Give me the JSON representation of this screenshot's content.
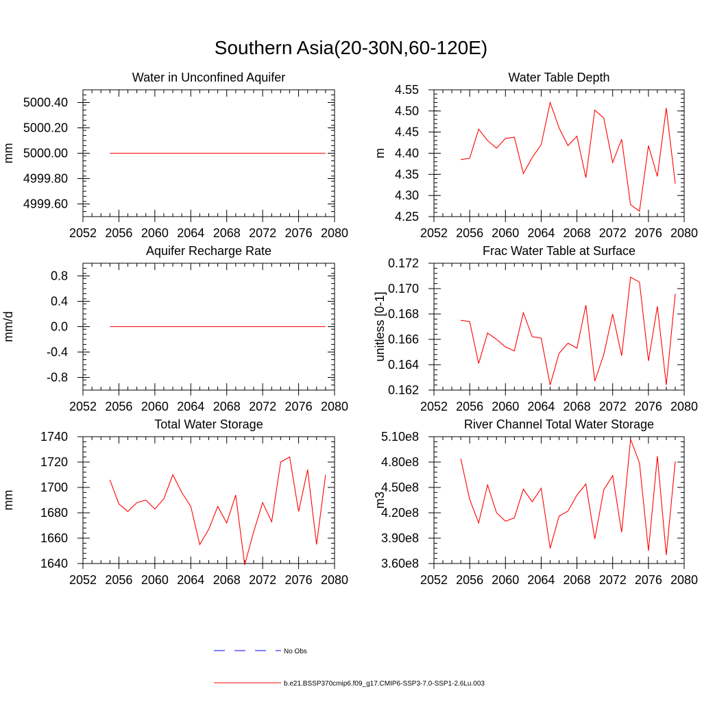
{
  "figure_title": "Southern Asia(20-30N,60-120E)",
  "colors": {
    "model": "#ff0000",
    "obs": "#0000ff",
    "axis": "#000000"
  },
  "legend": {
    "obs_label": "No Obs",
    "model_label": "b.e21.BSSP370cmip6.f09_g17.CMIP6-SSP3-7.0-SSP1-2.6Lu.003"
  },
  "chart_data": [
    {
      "type": "line",
      "title": "Water in Unconfined Aquifer",
      "ylabel": "mm",
      "xlim": [
        2052,
        2080
      ],
      "ylim": [
        4999.5,
        5000.5
      ],
      "xticks": [
        2052,
        2056,
        2060,
        2064,
        2068,
        2072,
        2076,
        2080
      ],
      "xtick_labels": [
        "2052",
        "2056",
        "2060",
        "2064",
        "2068",
        "2072",
        "2076",
        "2080"
      ],
      "yticks": [
        4999.6,
        4999.8,
        5000.0,
        5000.2,
        5000.4
      ],
      "ytick_labels": [
        "4999.60",
        "4999.80",
        "5000.00",
        "5000.20",
        "5000.40"
      ],
      "x": [
        2055,
        2056,
        2057,
        2058,
        2059,
        2060,
        2061,
        2062,
        2063,
        2064,
        2065,
        2066,
        2067,
        2068,
        2069,
        2070,
        2071,
        2072,
        2073,
        2074,
        2075,
        2076,
        2077,
        2078,
        2079
      ],
      "series": [
        {
          "values": [
            5000,
            5000,
            5000,
            5000,
            5000,
            5000,
            5000,
            5000,
            5000,
            5000,
            5000,
            5000,
            5000,
            5000,
            5000,
            5000,
            5000,
            5000,
            5000,
            5000,
            5000,
            5000,
            5000,
            5000,
            5000
          ]
        }
      ]
    },
    {
      "type": "line",
      "title": "Water Table Depth",
      "ylabel": "m",
      "xlim": [
        2052,
        2080
      ],
      "ylim": [
        4.25,
        4.55
      ],
      "xticks": [
        2052,
        2056,
        2060,
        2064,
        2068,
        2072,
        2076,
        2080
      ],
      "xtick_labels": [
        "2052",
        "2056",
        "2060",
        "2064",
        "2068",
        "2072",
        "2076",
        "2080"
      ],
      "yticks": [
        4.25,
        4.3,
        4.35,
        4.4,
        4.45,
        4.5,
        4.55
      ],
      "ytick_labels": [
        "4.25",
        "4.30",
        "4.35",
        "4.40",
        "4.45",
        "4.50",
        "4.55"
      ],
      "x": [
        2055,
        2056,
        2057,
        2058,
        2059,
        2060,
        2061,
        2062,
        2063,
        2064,
        2065,
        2066,
        2067,
        2068,
        2069,
        2070,
        2071,
        2072,
        2073,
        2074,
        2075,
        2076,
        2077,
        2078,
        2079
      ],
      "series": [
        {
          "values": [
            4.385,
            4.388,
            4.457,
            4.43,
            4.412,
            4.435,
            4.438,
            4.352,
            4.39,
            4.42,
            4.52,
            4.46,
            4.418,
            4.44,
            4.342,
            4.502,
            4.483,
            4.378,
            4.433,
            4.278,
            4.263,
            4.418,
            4.345,
            4.507,
            4.328
          ]
        }
      ]
    },
    {
      "type": "line",
      "title": "Aquifer Recharge Rate",
      "ylabel": "mm/d",
      "xlim": [
        2052,
        2080
      ],
      "ylim": [
        -1.0,
        1.0
      ],
      "xticks": [
        2052,
        2056,
        2060,
        2064,
        2068,
        2072,
        2076,
        2080
      ],
      "xtick_labels": [
        "2052",
        "2056",
        "2060",
        "2064",
        "2068",
        "2072",
        "2076",
        "2080"
      ],
      "yticks": [
        -0.8,
        -0.4,
        0.0,
        0.4,
        0.8
      ],
      "ytick_labels": [
        "-0.8",
        "-0.4",
        "0.0",
        "0.4",
        "0.8"
      ],
      "x": [
        2055,
        2056,
        2057,
        2058,
        2059,
        2060,
        2061,
        2062,
        2063,
        2064,
        2065,
        2066,
        2067,
        2068,
        2069,
        2070,
        2071,
        2072,
        2073,
        2074,
        2075,
        2076,
        2077,
        2078,
        2079
      ],
      "series": [
        {
          "values": [
            0,
            0,
            0,
            0,
            0,
            0,
            0,
            0,
            0,
            0,
            0,
            0,
            0,
            0,
            0,
            0,
            0,
            0,
            0,
            0,
            0,
            0,
            0,
            0,
            0
          ]
        }
      ]
    },
    {
      "type": "line",
      "title": "Frac Water Table at Surface",
      "ylabel": "unitless [0-1]",
      "xlim": [
        2052,
        2080
      ],
      "ylim": [
        0.162,
        0.172
      ],
      "xticks": [
        2052,
        2056,
        2060,
        2064,
        2068,
        2072,
        2076,
        2080
      ],
      "xtick_labels": [
        "2052",
        "2056",
        "2060",
        "2064",
        "2068",
        "2072",
        "2076",
        "2080"
      ],
      "yticks": [
        0.162,
        0.164,
        0.166,
        0.168,
        0.17,
        0.172
      ],
      "ytick_labels": [
        "0.162",
        "0.164",
        "0.166",
        "0.168",
        "0.170",
        "0.172"
      ],
      "x": [
        2055,
        2056,
        2057,
        2058,
        2059,
        2060,
        2061,
        2062,
        2063,
        2064,
        2065,
        2066,
        2067,
        2068,
        2069,
        2070,
        2071,
        2072,
        2073,
        2074,
        2075,
        2076,
        2077,
        2078,
        2079
      ],
      "series": [
        {
          "values": [
            0.1675,
            0.1674,
            0.1641,
            0.1665,
            0.166,
            0.1654,
            0.1651,
            0.1681,
            0.1662,
            0.1661,
            0.1624,
            0.1649,
            0.1657,
            0.1653,
            0.1687,
            0.1627,
            0.1648,
            0.168,
            0.1647,
            0.1709,
            0.1705,
            0.1643,
            0.1686,
            0.1624,
            0.1696
          ]
        }
      ]
    },
    {
      "type": "line",
      "title": "Total Water Storage",
      "ylabel": "mm",
      "xlim": [
        2052,
        2080
      ],
      "ylim": [
        1640,
        1740
      ],
      "xticks": [
        2052,
        2056,
        2060,
        2064,
        2068,
        2072,
        2076,
        2080
      ],
      "xtick_labels": [
        "2052",
        "2056",
        "2060",
        "2064",
        "2068",
        "2072",
        "2076",
        "2080"
      ],
      "yticks": [
        1640,
        1660,
        1680,
        1700,
        1720,
        1740
      ],
      "ytick_labels": [
        "1640",
        "1660",
        "1680",
        "1700",
        "1720",
        "1740"
      ],
      "x": [
        2055,
        2056,
        2057,
        2058,
        2059,
        2060,
        2061,
        2062,
        2063,
        2064,
        2065,
        2066,
        2067,
        2068,
        2069,
        2070,
        2071,
        2072,
        2073,
        2074,
        2075,
        2076,
        2077,
        2078,
        2079
      ],
      "series": [
        {
          "values": [
            1706,
            1687,
            1681,
            1688,
            1690,
            1683,
            1691,
            1710,
            1696,
            1685,
            1655,
            1667,
            1685,
            1672,
            1694,
            1639,
            1665,
            1688,
            1673,
            1720,
            1724,
            1681,
            1714,
            1655,
            1710
          ]
        }
      ]
    },
    {
      "type": "line",
      "title": "River Channel Total Water Storage",
      "ylabel": "m3",
      "xlim": [
        2052,
        2080
      ],
      "ylim": [
        360000000,
        510000000
      ],
      "xticks": [
        2052,
        2056,
        2060,
        2064,
        2068,
        2072,
        2076,
        2080
      ],
      "xtick_labels": [
        "2052",
        "2056",
        "2060",
        "2064",
        "2068",
        "2072",
        "2076",
        "2080"
      ],
      "yticks": [
        360000000,
        390000000,
        420000000,
        450000000,
        480000000,
        510000000
      ],
      "ytick_labels": [
        "3.60e8",
        "3.90e8",
        "4.20e8",
        "4.50e8",
        "4.80e8",
        "5.10e8"
      ],
      "x": [
        2055,
        2056,
        2057,
        2058,
        2059,
        2060,
        2061,
        2062,
        2063,
        2064,
        2065,
        2066,
        2067,
        2068,
        2069,
        2070,
        2071,
        2072,
        2073,
        2074,
        2075,
        2076,
        2077,
        2078,
        2079
      ],
      "series": [
        {
          "values": [
            484000000,
            436000000,
            408000000,
            453000000,
            420000000,
            410000000,
            414000000,
            448000000,
            433000000,
            449000000,
            378000000,
            416000000,
            422000000,
            441000000,
            454000000,
            389000000,
            447000000,
            464000000,
            397000000,
            507000000,
            479000000,
            375000000,
            487000000,
            370000000,
            481000000
          ]
        }
      ]
    }
  ]
}
